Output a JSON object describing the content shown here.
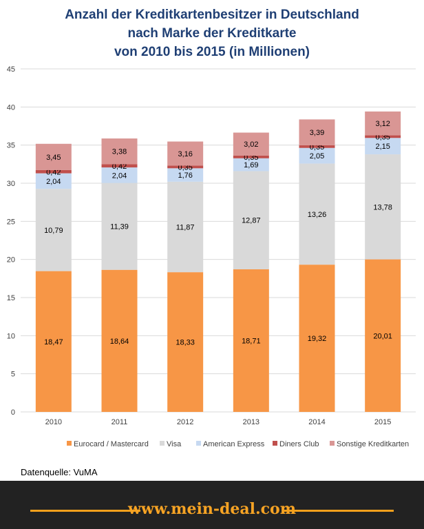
{
  "title": {
    "line1": "Anzahl der Kreditkartenbesitzer  in Deutschland",
    "line2": "nach Marke der Kreditkarte",
    "line3": "von 2010 bis 2015 (in Millionen)"
  },
  "source": "Datenquelle: VuMA",
  "footer": {
    "url": "www.mein-deal.com"
  },
  "colors": {
    "eurocard": "#f79646",
    "visa": "#d9d9d9",
    "amex": "#c6d9f1",
    "diners": "#c0504d",
    "sonstige": "#d99694",
    "title": "#1f3f74",
    "footer_bg": "#222222",
    "footer_accent": "#f4a01c"
  },
  "chart_data": {
    "type": "bar",
    "stacked": true,
    "categories": [
      "2010",
      "2011",
      "2012",
      "2013",
      "2014",
      "2015"
    ],
    "series": [
      {
        "name": "Eurocard / Mastercard",
        "values": [
          18.47,
          18.64,
          18.33,
          18.71,
          19.32,
          20.01
        ],
        "labels": [
          "18,47",
          "18,64",
          "18,33",
          "18,71",
          "19,32",
          "20,01"
        ],
        "color": "#f79646"
      },
      {
        "name": "Visa",
        "values": [
          10.79,
          11.39,
          11.87,
          12.87,
          13.26,
          13.78
        ],
        "labels": [
          "10,79",
          "11,39",
          "11,87",
          "12,87",
          "13,26",
          "13,78"
        ],
        "color": "#d9d9d9"
      },
      {
        "name": "American Express",
        "values": [
          2.04,
          2.04,
          1.76,
          1.69,
          2.05,
          2.15
        ],
        "labels": [
          "2,04",
          "2,04",
          "1,76",
          "1,69",
          "2,05",
          "2,15"
        ],
        "color": "#c6d9f1"
      },
      {
        "name": "Diners Club",
        "values": [
          0.42,
          0.42,
          0.35,
          0.35,
          0.35,
          0.35
        ],
        "labels": [
          "0,42",
          "0,42",
          "0,35",
          "0,35",
          "0,35",
          "0,35"
        ],
        "color": "#c0504d"
      },
      {
        "name": "Sonstige Kreditkarten",
        "values": [
          3.45,
          3.38,
          3.16,
          3.02,
          3.39,
          3.12
        ],
        "labels": [
          "3,45",
          "3,38",
          "3,16",
          "3,02",
          "3,39",
          "3,12"
        ],
        "color": "#d99694"
      }
    ],
    "ylim": [
      0,
      45
    ],
    "yticks": [
      "0",
      "5",
      "10",
      "15",
      "20",
      "25",
      "30",
      "35",
      "40",
      "45"
    ],
    "grid": true,
    "legend_position": "bottom"
  }
}
